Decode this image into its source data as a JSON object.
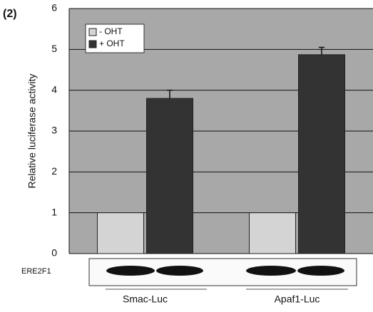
{
  "chart_data": {
    "type": "bar",
    "panel_label": "(2)",
    "ylabel": "Relative luciferase activity",
    "categories": [
      "Smac-Luc",
      "Apaf1-Luc"
    ],
    "series": [
      {
        "name": "- OHT",
        "color": "#d4d4d4",
        "values": [
          1,
          1
        ]
      },
      {
        "name": "+ OHT",
        "color": "#333333",
        "values": [
          3.8,
          4.87
        ],
        "errors": [
          0.2,
          0.18
        ]
      }
    ],
    "ylim": [
      0,
      6
    ],
    "yticks": [
      0,
      1,
      2,
      3,
      4,
      5,
      6
    ],
    "grid": true,
    "blot_label": "ERE2F1"
  }
}
